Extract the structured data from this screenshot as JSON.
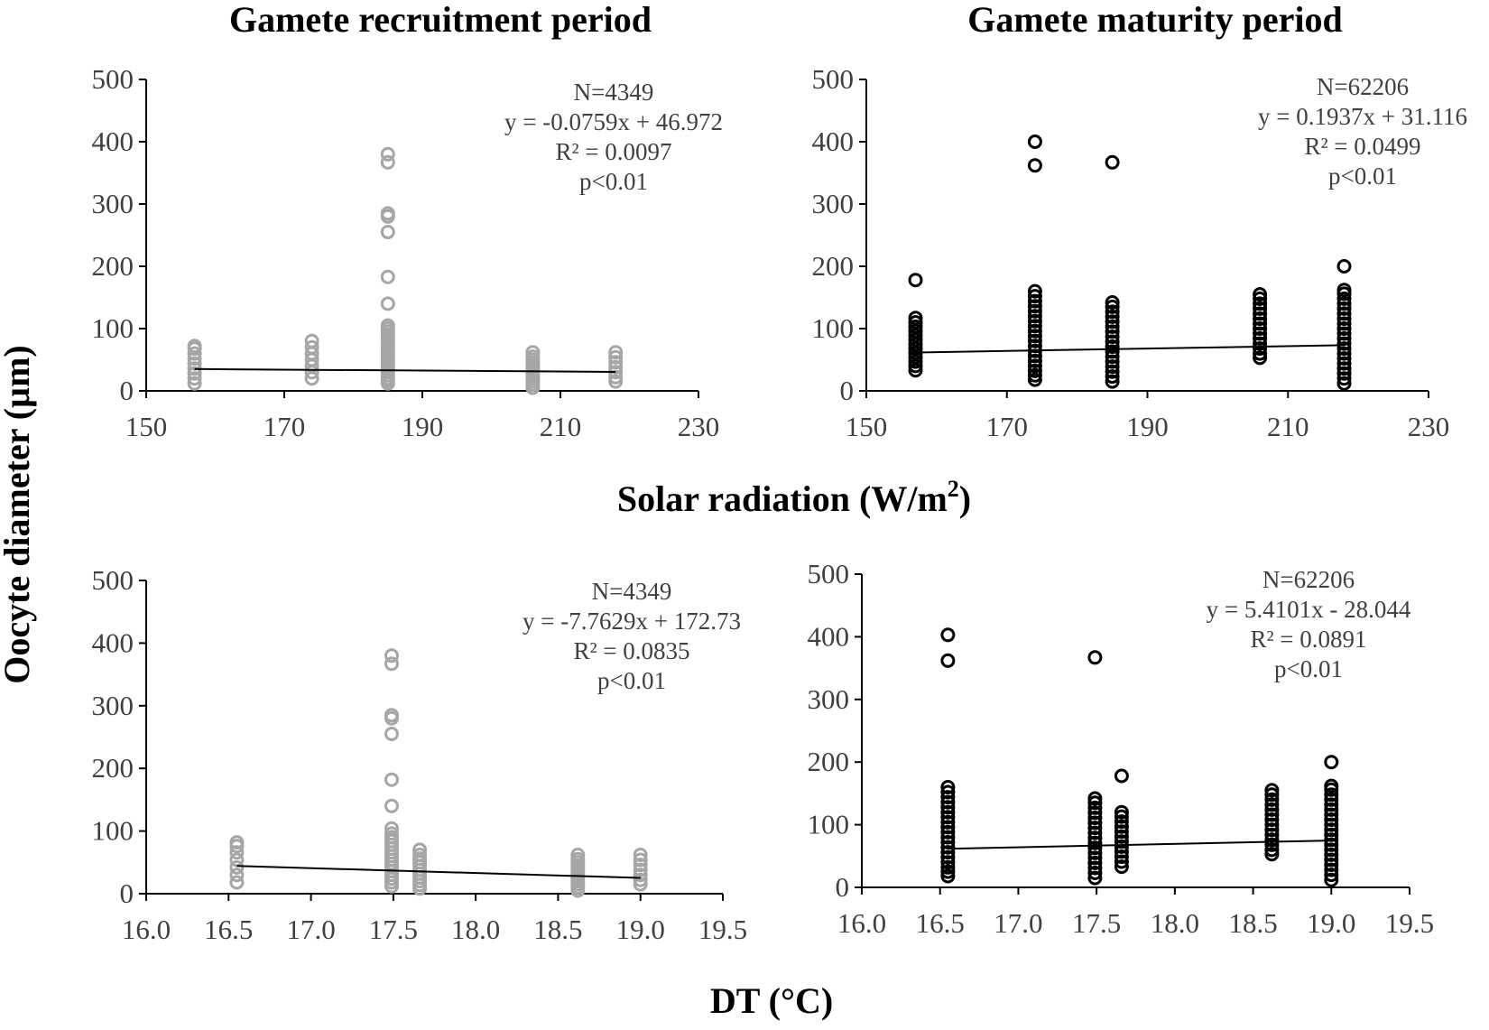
{
  "figure": {
    "shared_ylabel": "Oocyte diameter (µm)",
    "xlabel_solar_main": "Solar radiation (W/m",
    "xlabel_solar_sup": "2",
    "xlabel_solar_end": ")",
    "xlabel_dt": "DT (°C)",
    "colors": {
      "recruitment": "#a6a6a6",
      "maturity": "#000000",
      "trendline": "#000000"
    }
  },
  "chart_data": [
    {
      "id": "recruitment-solar",
      "type": "scatter",
      "title": "Gamete recruitment period",
      "xlabel": "Solar radiation (W/m²)",
      "ylabel": "Oocyte diameter (µm)",
      "xlim": [
        150,
        230
      ],
      "ylim": [
        0,
        500
      ],
      "xticks": [
        150,
        170,
        190,
        210,
        230
      ],
      "xtick_labels": [
        "150",
        "170",
        "190",
        "210",
        "230"
      ],
      "yticks": [
        0,
        100,
        200,
        300,
        400,
        500
      ],
      "ytick_labels": [
        "0",
        "100",
        "200",
        "300",
        "400",
        "500"
      ],
      "marker_color": "#a6a6a6",
      "annotation": [
        "N=4349",
        "y = -0.0759x + 46.972",
        "R² = 0.0097",
        "p<0.01"
      ],
      "trendline": {
        "slope": -0.0759,
        "intercept": 46.972,
        "x_range": [
          157,
          218
        ]
      },
      "series": [
        {
          "x": 157,
          "y": [
            12,
            20,
            28,
            36,
            44,
            52,
            60,
            68,
            72
          ]
        },
        {
          "x": 174,
          "y": [
            20,
            30,
            40,
            50,
            60,
            70,
            80
          ]
        },
        {
          "x": 185,
          "y": [
            12,
            16,
            20,
            25,
            30,
            35,
            40,
            45,
            50,
            55,
            60,
            65,
            70,
            75,
            80,
            85,
            90,
            95,
            100,
            105,
            140,
            183,
            255,
            280,
            285,
            367,
            380
          ]
        },
        {
          "x": 206,
          "y": [
            5,
            10,
            15,
            20,
            25,
            30,
            35,
            40,
            45,
            50,
            55,
            62
          ]
        },
        {
          "x": 218,
          "y": [
            15,
            22,
            30,
            38,
            46,
            54,
            62
          ]
        }
      ]
    },
    {
      "id": "maturity-solar",
      "type": "scatter",
      "title": "Gamete maturity period",
      "xlabel": "Solar radiation (W/m²)",
      "ylabel": "Oocyte diameter (µm)",
      "xlim": [
        150,
        230
      ],
      "ylim": [
        0,
        500
      ],
      "xticks": [
        150,
        170,
        190,
        210,
        230
      ],
      "xtick_labels": [
        "150",
        "170",
        "190",
        "210",
        "230"
      ],
      "yticks": [
        0,
        100,
        200,
        300,
        400,
        500
      ],
      "ytick_labels": [
        "0",
        "100",
        "200",
        "300",
        "400",
        "500"
      ],
      "marker_color": "#000000",
      "annotation": [
        "N=62206",
        "y = 0.1937x + 31.116",
        "R² = 0.0499",
        "p<0.01"
      ],
      "trendline": {
        "slope": 0.1937,
        "intercept": 31.116,
        "x_range": [
          157,
          218
        ]
      },
      "series": [
        {
          "x": 157,
          "y": [
            33,
            40,
            47,
            54,
            61,
            68,
            75,
            82,
            89,
            96,
            103,
            110,
            117,
            178
          ]
        },
        {
          "x": 174,
          "y": [
            18,
            25,
            32,
            40,
            48,
            56,
            64,
            72,
            80,
            88,
            96,
            104,
            112,
            120,
            128,
            136,
            144,
            152,
            160,
            362,
            400
          ]
        },
        {
          "x": 185,
          "y": [
            15,
            23,
            31,
            39,
            47,
            55,
            63,
            71,
            79,
            87,
            95,
            103,
            111,
            119,
            127,
            135,
            142,
            367
          ]
        },
        {
          "x": 206,
          "y": [
            53,
            60,
            68,
            76,
            84,
            92,
            100,
            108,
            116,
            124,
            132,
            140,
            148,
            155
          ]
        },
        {
          "x": 218,
          "y": [
            12,
            20,
            28,
            36,
            44,
            52,
            60,
            68,
            76,
            84,
            92,
            100,
            108,
            116,
            124,
            132,
            140,
            148,
            156,
            162,
            200
          ]
        }
      ]
    },
    {
      "id": "recruitment-dt",
      "type": "scatter",
      "title": "",
      "xlabel": "DT (°C)",
      "ylabel": "Oocyte diameter (µm)",
      "xlim": [
        16.0,
        19.5
      ],
      "ylim": [
        0,
        500
      ],
      "xticks": [
        16.0,
        16.5,
        17.0,
        17.5,
        18.0,
        18.5,
        19.0,
        19.5
      ],
      "xtick_labels": [
        "16.0",
        "16.5",
        "17.0",
        "17.5",
        "18.0",
        "18.5",
        "19.0",
        "19.5"
      ],
      "yticks": [
        0,
        100,
        200,
        300,
        400,
        500
      ],
      "ytick_labels": [
        "0",
        "100",
        "200",
        "300",
        "400",
        "500"
      ],
      "marker_color": "#a6a6a6",
      "annotation": [
        "N=4349",
        "y = -7.7629x + 172.73",
        "R² = 0.0835",
        "p<0.01"
      ],
      "trendline": {
        "slope": -7.7629,
        "intercept": 172.73,
        "x_range": [
          16.55,
          19.0
        ]
      },
      "series": [
        {
          "x": 16.55,
          "y": [
            18,
            30,
            42,
            54,
            66,
            76,
            82
          ]
        },
        {
          "x": 17.49,
          "y": [
            12,
            18,
            24,
            30,
            36,
            42,
            48,
            54,
            60,
            66,
            72,
            78,
            84,
            90,
            96,
            104,
            140,
            182,
            255,
            280,
            285,
            367,
            380
          ]
        },
        {
          "x": 17.66,
          "y": [
            8,
            14,
            20,
            26,
            32,
            38,
            44,
            50,
            56,
            62,
            70
          ]
        },
        {
          "x": 18.62,
          "y": [
            5,
            10,
            15,
            20,
            25,
            30,
            35,
            40,
            45,
            50,
            55,
            62
          ]
        },
        {
          "x": 19.0,
          "y": [
            15,
            22,
            30,
            38,
            46,
            54,
            62
          ]
        }
      ]
    },
    {
      "id": "maturity-dt",
      "type": "scatter",
      "title": "",
      "xlabel": "DT (°C)",
      "ylabel": "Oocyte diameter (µm)",
      "xlim": [
        16.0,
        19.5
      ],
      "ylim": [
        0,
        500
      ],
      "xticks": [
        16.0,
        16.5,
        17.0,
        17.5,
        18.0,
        18.5,
        19.0,
        19.5
      ],
      "xtick_labels": [
        "16.0",
        "16.5",
        "17.0",
        "17.5",
        "18.0",
        "18.5",
        "19.0",
        "19.5"
      ],
      "yticks": [
        0,
        100,
        200,
        300,
        400,
        500
      ],
      "ytick_labels": [
        "0",
        "100",
        "200",
        "300",
        "400",
        "500"
      ],
      "marker_color": "#000000",
      "annotation": [
        "N=62206",
        "y = 5.4101x - 28.044",
        "R² = 0.0891",
        "p<0.01"
      ],
      "trendline": {
        "slope": 5.4101,
        "intercept": -28.044,
        "x_range": [
          16.55,
          19.0
        ]
      },
      "series": [
        {
          "x": 16.55,
          "y": [
            18,
            25,
            32,
            40,
            48,
            56,
            64,
            72,
            80,
            88,
            96,
            104,
            112,
            120,
            128,
            136,
            144,
            152,
            160,
            362,
            403
          ]
        },
        {
          "x": 17.49,
          "y": [
            15,
            23,
            31,
            39,
            47,
            55,
            63,
            71,
            79,
            87,
            95,
            103,
            111,
            119,
            127,
            135,
            142,
            367
          ]
        },
        {
          "x": 17.66,
          "y": [
            33,
            41,
            49,
            57,
            65,
            73,
            81,
            89,
            97,
            105,
            113,
            120,
            178
          ]
        },
        {
          "x": 18.62,
          "y": [
            53,
            60,
            68,
            76,
            84,
            92,
            100,
            108,
            116,
            124,
            132,
            140,
            148,
            155
          ]
        },
        {
          "x": 19.0,
          "y": [
            12,
            20,
            28,
            36,
            44,
            52,
            60,
            68,
            76,
            84,
            92,
            100,
            108,
            116,
            124,
            132,
            140,
            148,
            156,
            162,
            200
          ]
        }
      ]
    }
  ]
}
